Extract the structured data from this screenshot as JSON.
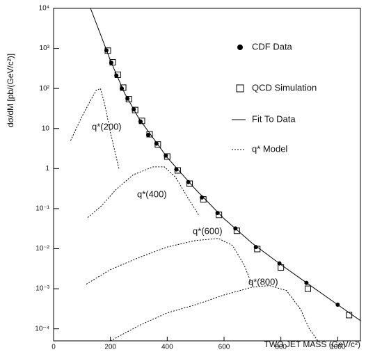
{
  "chart_data": {
    "type": "scatter",
    "x_label": "TWO JET MASS  (GeV/c²)",
    "y_label": "dσ/dM  [pb/(GeV/c²)]",
    "xlim": [
      0,
      1080
    ],
    "ylim": [
      5e-05,
      10000
    ],
    "y_log": true,
    "xticks": [
      0,
      200,
      400,
      600,
      800,
      1000
    ],
    "yticks": [
      {
        "value": 10000,
        "label": "10⁴"
      },
      {
        "value": 1000,
        "label": "10³"
      },
      {
        "value": 100,
        "label": "10²"
      },
      10,
      1,
      {
        "value": 0.1,
        "label": "10⁻¹"
      },
      {
        "value": 0.01,
        "label": "10⁻²"
      },
      {
        "value": 0.001,
        "label": "10⁻³"
      },
      {
        "value": 0.0001,
        "label": "10⁻⁴"
      }
    ],
    "series": [
      {
        "name": "CDF Data",
        "marker": "circle",
        "color": "#000000",
        "x": [
          186,
          203,
          221,
          240,
          260,
          282,
          306,
          333,
          362,
          395,
          432,
          474,
          522,
          577,
          640,
          712,
          795,
          890,
          1000
        ],
        "values": [
          890,
          440,
          210,
          100,
          56,
          30,
          15,
          6.9,
          4.2,
          2.1,
          0.95,
          0.46,
          0.19,
          0.078,
          0.032,
          0.011,
          0.0043,
          0.0014,
          0.0004
        ]
      },
      {
        "name": "QCD Simulation",
        "marker": "square",
        "color": "#000000",
        "x": [
          191,
          208,
          226,
          245,
          265,
          287,
          311,
          338,
          367,
          400,
          437,
          479,
          527,
          582,
          645,
          717,
          800,
          895,
          1040
        ],
        "values": [
          880,
          450,
          220,
          105,
          54,
          29,
          15.5,
          7.2,
          4.0,
          2.0,
          0.9,
          0.42,
          0.17,
          0.07,
          0.028,
          0.0098,
          0.0034,
          0.001,
          0.00022
        ]
      },
      {
        "name": "Fit To Data",
        "marker": "line",
        "color": "#000000",
        "x": [
          130,
          160,
          200,
          250,
          300,
          400,
          500,
          600,
          700,
          800,
          900,
          1000,
          1080
        ],
        "values": [
          10000,
          2800,
          500,
          76,
          18,
          1.9,
          0.3,
          0.056,
          0.0135,
          0.004,
          0.00126,
          0.0004,
          0.00016
        ]
      },
      {
        "name": "q* Model",
        "marker": "dashed",
        "color": "#000000",
        "x": [
          60,
          100,
          130,
          150,
          165,
          180,
          200,
          230,
          null,
          120,
          170,
          220,
          280,
          350,
          390,
          430,
          470,
          510,
          null,
          115,
          200,
          300,
          400,
          500,
          580,
          630,
          670,
          700,
          null,
          200,
          300,
          400,
          500,
          600,
          700,
          760,
          820,
          870,
          900,
          930
        ],
        "values": [
          5,
          20,
          50,
          90,
          100,
          40,
          8,
          1,
          null,
          0.06,
          0.12,
          0.3,
          0.7,
          1.1,
          1.1,
          0.6,
          0.2,
          0.07,
          null,
          0.0013,
          0.003,
          0.006,
          0.011,
          0.016,
          0.018,
          0.012,
          0.004,
          0.0012,
          null,
          5e-05,
          0.00012,
          0.00025,
          0.0004,
          0.0007,
          0.0011,
          0.0012,
          0.0009,
          0.0003,
          0.0001,
          5e-05
        ]
      }
    ],
    "annotations": [
      "q*(200)",
      "q*(400)",
      "q*(600)",
      "q*(800)"
    ]
  }
}
